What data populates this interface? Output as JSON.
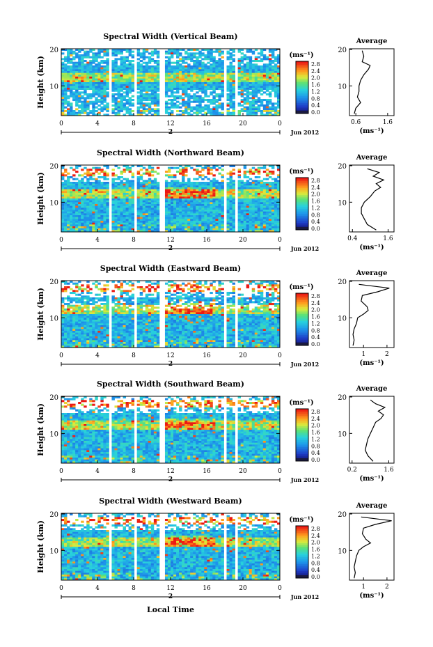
{
  "shared": {
    "y_axis_label": "Height (km)",
    "x_ticks": [
      "0",
      "4",
      "8",
      "12",
      "16",
      "20",
      "0"
    ],
    "day_label": "2",
    "month_label": "Jun 2012",
    "x_axis_label": "Local Time",
    "colorbar_unit": "(ms⁻¹)",
    "colorbar_ticks": [
      "2.8",
      "2.4",
      "2.0",
      "1.6",
      "1.2",
      "0.8",
      "0.4",
      "0.0"
    ],
    "y_ticks": [
      "20",
      "10"
    ],
    "avg_title": "Average",
    "avg_xlabel": "(ms⁻¹)",
    "colors": {
      "low": "#1f2f9f",
      "mid": "#2aa8e8",
      "high": "#ff2a1a",
      "gap": "#ffffff"
    }
  },
  "chart_data": [
    {
      "type": "heatmap",
      "title": "Spectral Width (Vertical Beam)",
      "xlabel": "",
      "ylabel": "Height (km)",
      "xlim": [
        0,
        24
      ],
      "ylim": [
        2,
        20
      ],
      "colorbar_range": [
        0.0,
        3.0
      ],
      "avg_profile": {
        "title": "Average",
        "xlabel": "(ms⁻¹)",
        "xticks": [
          "0.6",
          "1.6"
        ],
        "xlim": [
          0.4,
          1.8
        ],
        "heights": [
          2.5,
          4,
          5.5,
          7,
          8.5,
          10,
          11.5,
          13,
          14.5,
          15.5,
          16.5,
          18,
          19.5
        ],
        "values": [
          0.55,
          0.6,
          0.75,
          0.65,
          0.7,
          0.7,
          0.75,
          0.85,
          1.0,
          1.05,
          0.8,
          0.85,
          0.8
        ]
      }
    },
    {
      "type": "heatmap",
      "title": "Spectral Width (Northward Beam)",
      "xlabel": "",
      "ylabel": "Height (km)",
      "xlim": [
        0,
        24
      ],
      "ylim": [
        2,
        20
      ],
      "colorbar_range": [
        0.0,
        3.0
      ],
      "avg_profile": {
        "title": "Average",
        "xlabel": "(ms⁻¹)",
        "xticks": [
          "0.4",
          "1.6"
        ],
        "xlim": [
          0.3,
          1.8
        ],
        "heights": [
          2.5,
          4,
          5.5,
          7,
          8.5,
          10,
          11.5,
          13,
          14,
          15,
          16,
          17,
          18,
          19
        ],
        "values": [
          1.2,
          0.9,
          0.8,
          0.7,
          0.7,
          0.8,
          1.0,
          1.15,
          1.35,
          1.2,
          1.45,
          1.1,
          1.3,
          0.9
        ]
      }
    },
    {
      "type": "heatmap",
      "title": "Spectral Width (Eastward Beam)",
      "xlabel": "",
      "ylabel": "Height (km)",
      "xlim": [
        0,
        24
      ],
      "ylim": [
        2,
        20
      ],
      "colorbar_range": [
        0.0,
        3.0
      ],
      "avg_profile": {
        "title": "Average",
        "xlabel": "(ms⁻¹)",
        "xticks": [
          "1",
          "2"
        ],
        "xlim": [
          0.4,
          2.3
        ],
        "heights": [
          2.5,
          4,
          5.5,
          7,
          8.5,
          10,
          11,
          12,
          13,
          14.5,
          16,
          17,
          18,
          19
        ],
        "values": [
          0.55,
          0.6,
          0.55,
          0.6,
          0.7,
          0.75,
          1.0,
          1.2,
          1.15,
          0.9,
          0.95,
          1.6,
          2.1,
          0.8
        ]
      }
    },
    {
      "type": "heatmap",
      "title": "Spectral Width (Southward Beam)",
      "xlabel": "",
      "ylabel": "Height (km)",
      "xlim": [
        0,
        24
      ],
      "ylim": [
        2,
        20
      ],
      "colorbar_range": [
        0.0,
        3.0
      ],
      "avg_profile": {
        "title": "Average",
        "xlabel": "(ms⁻¹)",
        "xticks": [
          "0.2",
          "1.6"
        ],
        "xlim": [
          0.1,
          1.8
        ],
        "heights": [
          2.5,
          4,
          5.5,
          7,
          8.5,
          10,
          11.5,
          13,
          14,
          15,
          16,
          17,
          18,
          19
        ],
        "values": [
          1.0,
          0.8,
          0.7,
          0.75,
          0.8,
          0.9,
          1.0,
          1.1,
          1.3,
          1.4,
          1.2,
          1.45,
          1.1,
          0.9
        ]
      }
    },
    {
      "type": "heatmap",
      "title": "Spectral Width (Westward Beam)",
      "xlabel": "Local Time",
      "ylabel": "Height (km)",
      "xlim": [
        0,
        24
      ],
      "ylim": [
        2,
        20
      ],
      "colorbar_range": [
        0.0,
        3.0
      ],
      "avg_profile": {
        "title": "Average",
        "xlabel": "(ms⁻¹)",
        "xticks": [
          "1",
          "2"
        ],
        "xlim": [
          0.4,
          2.3
        ],
        "heights": [
          2.5,
          4,
          5.5,
          7,
          8.5,
          10,
          11,
          12,
          13,
          14.5,
          16,
          17,
          18,
          19
        ],
        "values": [
          0.6,
          0.65,
          0.6,
          0.65,
          0.7,
          0.8,
          1.0,
          1.3,
          1.1,
          0.95,
          1.0,
          1.5,
          2.2,
          0.9
        ]
      }
    }
  ]
}
